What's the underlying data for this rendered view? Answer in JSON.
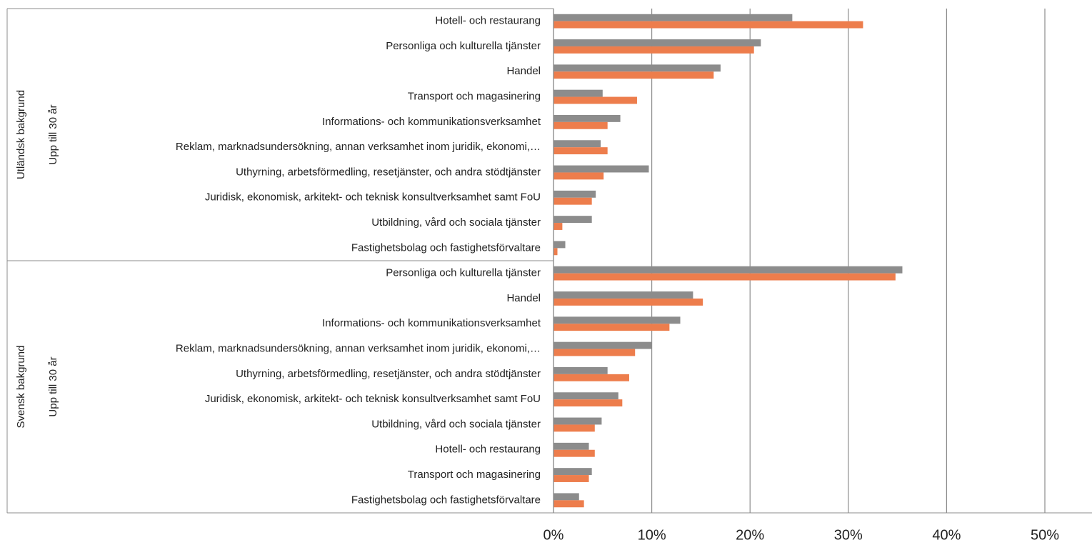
{
  "chart_data": {
    "type": "bar",
    "orientation": "horizontal",
    "group_labels": [
      "Utländsk bakgrund",
      "Svensk bakgrund"
    ],
    "subgroup_labels": [
      "Upp till 30 år",
      "Upp till 30 år"
    ],
    "categories": [
      "Hotell- och restaurang",
      "Personliga och kulturella tjänster",
      "Handel",
      "Transport och magasinering",
      "Informations- och kommunikationsverksamhet",
      "Reklam, marknadsundersökning, annan verksamhet inom juridik, ekonomi,…",
      "Uthyrning, arbetsförmedling, resetjänster, och andra stödtjänster",
      "Juridisk, ekonomisk, arkitekt- och teknisk konsultverksamhet samt FoU",
      "Utbildning, vård och sociala tjänster",
      "Fastighetsbolag och fastighetsförvaltare",
      "Personliga och kulturella tjänster",
      "Handel",
      "Informations- och kommunikationsverksamhet",
      "Reklam, marknadsundersökning, annan verksamhet inom juridik, ekonomi,…",
      "Uthyrning, arbetsförmedling, resetjänster, och andra stödtjänster",
      "Juridisk, ekonomisk, arkitekt- och teknisk konsultverksamhet samt FoU",
      "Utbildning, vård och sociala tjänster",
      "Hotell- och restaurang",
      "Transport och magasinering",
      "Fastighetsbolag och fastighetsförvaltare"
    ],
    "series": [
      {
        "color": "#8c8c8c",
        "values": [
          24.3,
          21.1,
          17.0,
          5.0,
          6.8,
          4.8,
          9.7,
          4.3,
          3.9,
          1.2,
          35.5,
          14.2,
          12.9,
          10.0,
          5.5,
          6.6,
          4.9,
          3.6,
          3.9,
          2.6
        ]
      },
      {
        "color": "#ed7d4c",
        "values": [
          31.5,
          20.4,
          16.3,
          8.5,
          5.5,
          5.5,
          5.1,
          3.9,
          0.9,
          0.4,
          34.8,
          15.2,
          11.8,
          8.3,
          7.7,
          7.0,
          4.2,
          4.2,
          3.6,
          3.1
        ]
      }
    ],
    "xlim": [
      0,
      50
    ],
    "xticks": [
      {
        "value": 0,
        "label": "0%"
      },
      {
        "value": 10,
        "label": "10%"
      },
      {
        "value": 20,
        "label": "20%"
      },
      {
        "value": 30,
        "label": "30%"
      },
      {
        "value": 40,
        "label": "40%"
      },
      {
        "value": 50,
        "label": "50%"
      }
    ],
    "grid": true
  }
}
